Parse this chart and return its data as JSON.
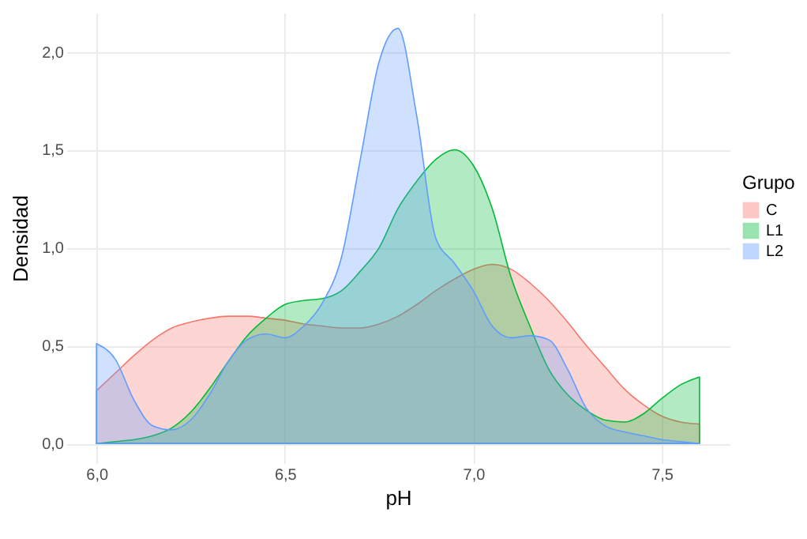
{
  "chart_data": {
    "type": "area",
    "xlabel": "pH",
    "ylabel": "Densidad",
    "legend_title": "Grupo",
    "x": [
      6.0,
      6.05,
      6.1,
      6.15,
      6.2,
      6.25,
      6.3,
      6.35,
      6.4,
      6.45,
      6.5,
      6.55,
      6.6,
      6.65,
      6.7,
      6.75,
      6.8,
      6.85,
      6.9,
      6.95,
      7.0,
      7.05,
      7.1,
      7.15,
      7.2,
      7.25,
      7.3,
      7.35,
      7.4,
      7.45,
      7.5,
      7.55,
      7.6
    ],
    "series": [
      {
        "name": "C",
        "color": "#f8766d",
        "values": [
          0.27,
          0.36,
          0.45,
          0.53,
          0.59,
          0.62,
          0.64,
          0.65,
          0.65,
          0.64,
          0.63,
          0.61,
          0.6,
          0.59,
          0.59,
          0.61,
          0.65,
          0.71,
          0.78,
          0.84,
          0.89,
          0.915,
          0.89,
          0.82,
          0.73,
          0.62,
          0.5,
          0.39,
          0.28,
          0.2,
          0.14,
          0.11,
          0.1
        ]
      },
      {
        "name": "L1",
        "color": "#00ba38",
        "values": [
          0,
          0.01,
          0.02,
          0.04,
          0.08,
          0.16,
          0.28,
          0.42,
          0.55,
          0.64,
          0.71,
          0.73,
          0.74,
          0.78,
          0.88,
          1.0,
          1.2,
          1.34,
          1.45,
          1.5,
          1.42,
          1.2,
          0.85,
          0.6,
          0.38,
          0.25,
          0.17,
          0.12,
          0.11,
          0.15,
          0.23,
          0.3,
          0.34
        ]
      },
      {
        "name": "L2",
        "color": "#619cff",
        "values": [
          0.51,
          0.43,
          0.22,
          0.09,
          0.07,
          0.12,
          0.25,
          0.42,
          0.53,
          0.56,
          0.54,
          0.6,
          0.72,
          0.95,
          1.45,
          1.95,
          2.12,
          1.67,
          1.05,
          0.92,
          0.78,
          0.6,
          0.54,
          0.55,
          0.53,
          0.38,
          0.18,
          0.09,
          0.06,
          0.04,
          0.02,
          0.01,
          0
        ]
      }
    ],
    "xlim": [
      5.92,
      7.68
    ],
    "ylim": [
      -0.1,
      2.2
    ],
    "xticks": [
      {
        "value": 6.0,
        "label": "6,0"
      },
      {
        "value": 6.5,
        "label": "6,5"
      },
      {
        "value": 7.0,
        "label": "7,0"
      },
      {
        "value": 7.5,
        "label": "7,5"
      }
    ],
    "yticks": [
      {
        "value": 0.0,
        "label": "0,0"
      },
      {
        "value": 0.5,
        "label": "0,5"
      },
      {
        "value": 1.0,
        "label": "1,0"
      },
      {
        "value": 1.5,
        "label": "1,5"
      },
      {
        "value": 2.0,
        "label": "2,0"
      }
    ],
    "grid": true,
    "legend": "right"
  }
}
